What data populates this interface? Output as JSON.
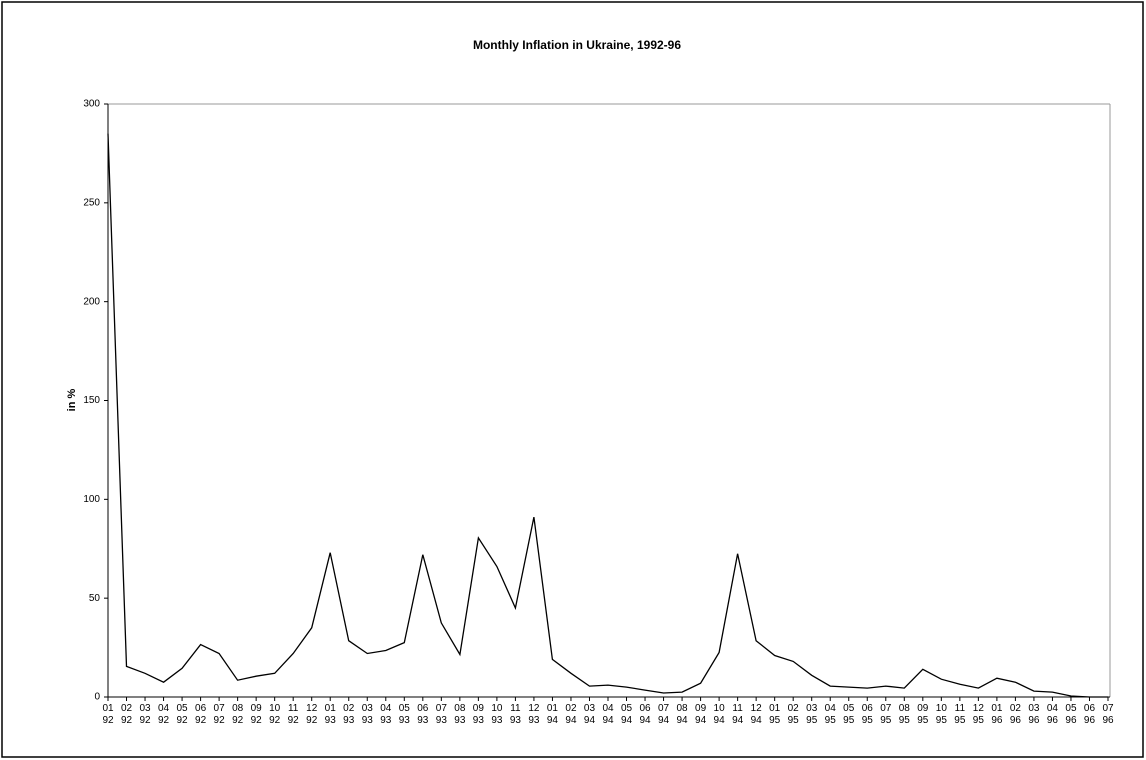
{
  "chart_data": {
    "type": "line",
    "title": "Monthly Inflation in Ukraine, 1992-96",
    "y_label": "in %",
    "categories": [
      "01 92",
      "02 92",
      "03 92",
      "04 92",
      "05 92",
      "06 92",
      "07 92",
      "08 92",
      "09 92",
      "10 92",
      "11 92",
      "12 92",
      "01 93",
      "02 93",
      "03 93",
      "04 93",
      "05 93",
      "06 93",
      "07 93",
      "08 93",
      "09 93",
      "10 93",
      "11 93",
      "12 93",
      "01 94",
      "02 94",
      "03 94",
      "04 94",
      "05 94",
      "06 94",
      "07 94",
      "08 94",
      "09 94",
      "10 94",
      "11 94",
      "12 94",
      "01 95",
      "02 95",
      "03 95",
      "04 95",
      "05 95",
      "06 95",
      "07 95",
      "08 95",
      "09 95",
      "10 95",
      "11 95",
      "12 95",
      "01 96",
      "02 96",
      "03 96",
      "04 96",
      "05 96",
      "06 96",
      "07 96"
    ],
    "values": [
      285,
      15.5,
      12,
      7.5,
      14.5,
      26.5,
      22,
      8.5,
      10.5,
      12,
      22,
      35,
      73,
      28.5,
      22,
      23.5,
      27.5,
      72,
      37.5,
      21.5,
      80.5,
      66,
      45,
      91,
      19,
      12,
      5.5,
      6,
      5,
      3.5,
      2,
      2.5,
      7,
      22.5,
      72.5,
      28.5,
      21,
      18,
      11,
      5.5,
      5,
      4.5,
      5.5,
      4.5,
      14,
      9,
      6.5,
      4.5,
      9.5,
      7.5,
      3,
      2.5,
      0.5,
      0,
      0
    ],
    "color": "#000000",
    "ylim": [
      0,
      300
    ],
    "yticks": [
      0,
      50,
      100,
      150,
      200,
      250,
      300
    ],
    "grid": false
  }
}
